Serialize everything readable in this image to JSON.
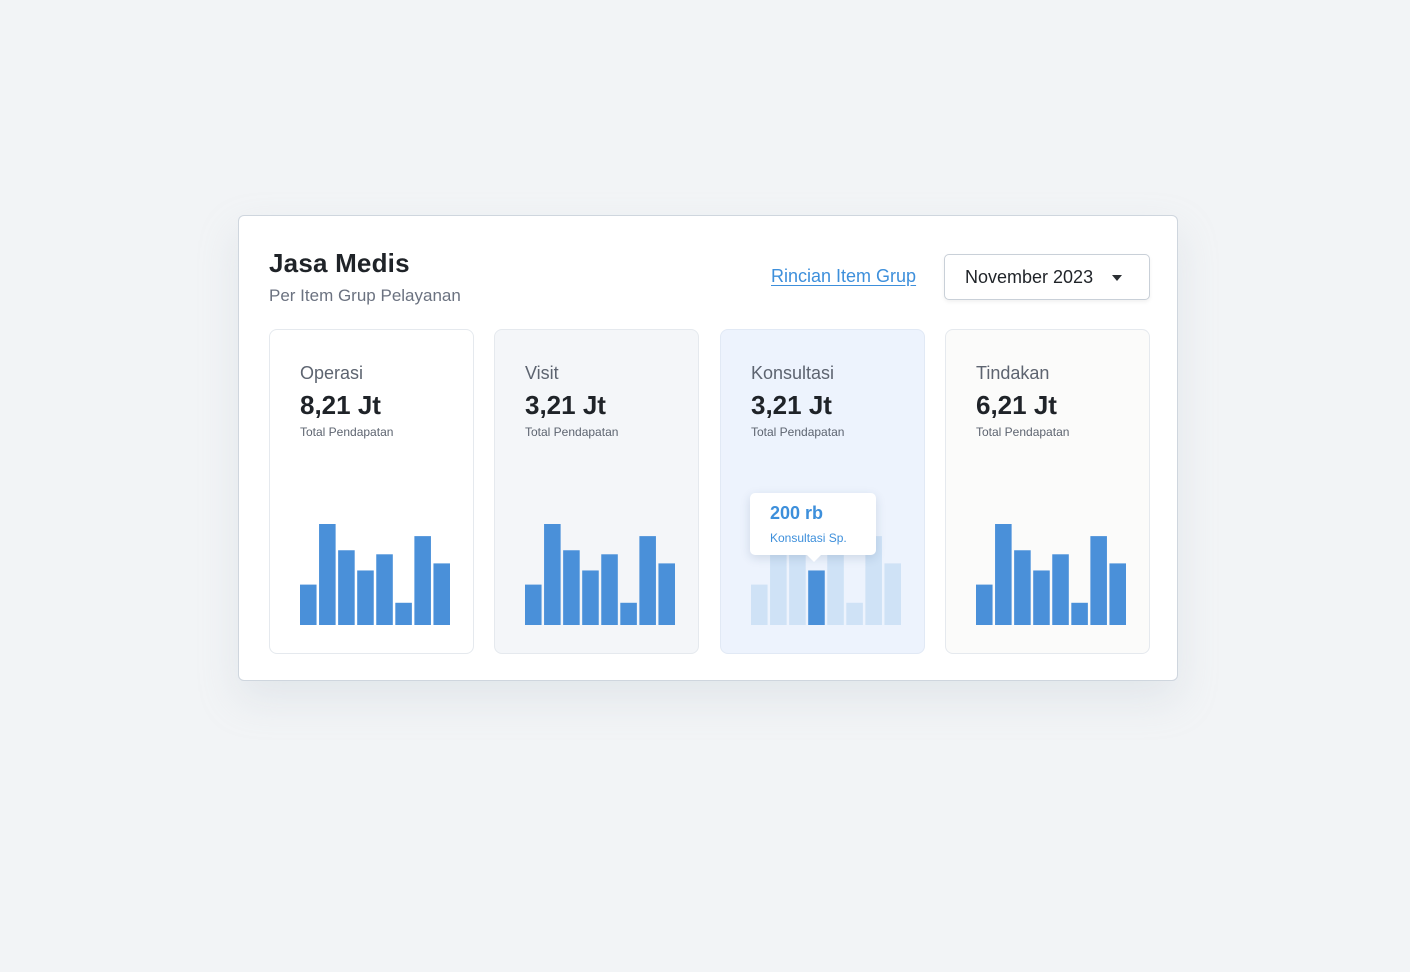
{
  "header": {
    "title": "Jasa Medis",
    "subtitle": "Per Item Grup Pelayanan",
    "link_label": "Rincian Item Grup",
    "period_select": "November 2023"
  },
  "colors": {
    "accent": "#4a90d9",
    "bar_muted": "#cfe2f6"
  },
  "cards": [
    {
      "label": "Operasi",
      "value": "8,21 Jt",
      "caption": "Total Pendapatan"
    },
    {
      "label": "Visit",
      "value": "3,21 Jt",
      "caption": "Total Pendapatan"
    },
    {
      "label": "Konsultasi",
      "value": "3,21 Jt",
      "caption": "Total Pendapatan"
    },
    {
      "label": "Tindakan",
      "value": "6,21 Jt",
      "caption": "Total Pendapatan"
    }
  ],
  "tooltip": {
    "value": "200 rb",
    "label": "Konsultasi Sp."
  },
  "chart_data": [
    {
      "type": "bar",
      "card": "Operasi",
      "values": [
        40,
        100,
        74,
        54,
        70,
        22,
        88,
        61
      ],
      "ylim": [
        0,
        100
      ],
      "highlight_index": null
    },
    {
      "type": "bar",
      "card": "Visit",
      "values": [
        40,
        100,
        74,
        54,
        70,
        22,
        88,
        61
      ],
      "ylim": [
        0,
        100
      ],
      "highlight_index": null
    },
    {
      "type": "bar",
      "card": "Konsultasi",
      "values": [
        40,
        100,
        74,
        54,
        70,
        22,
        88,
        61
      ],
      "ylim": [
        0,
        100
      ],
      "highlight_index": 3
    },
    {
      "type": "bar",
      "card": "Tindakan",
      "values": [
        40,
        100,
        74,
        54,
        70,
        22,
        88,
        61
      ],
      "ylim": [
        0,
        100
      ],
      "highlight_index": null
    }
  ]
}
